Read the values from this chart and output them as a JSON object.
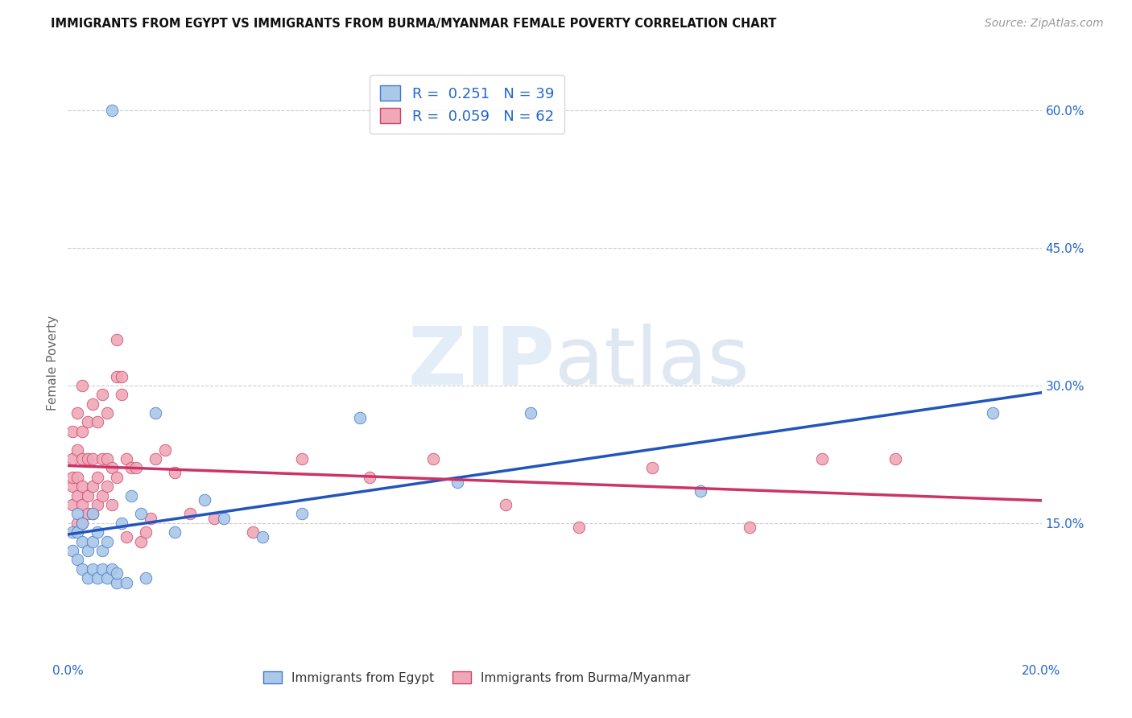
{
  "title": "IMMIGRANTS FROM EGYPT VS IMMIGRANTS FROM BURMA/MYANMAR FEMALE POVERTY CORRELATION CHART",
  "source": "Source: ZipAtlas.com",
  "ylabel": "Female Poverty",
  "xlim": [
    0.0,
    0.2
  ],
  "ylim": [
    0.0,
    0.65
  ],
  "xtick_pos": [
    0.0,
    0.05,
    0.1,
    0.15,
    0.2
  ],
  "xticklabels": [
    "0.0%",
    "",
    "",
    "",
    "20.0%"
  ],
  "ytick_pos": [
    0.15,
    0.3,
    0.45,
    0.6
  ],
  "ytick_labels": [
    "15.0%",
    "30.0%",
    "45.0%",
    "60.0%"
  ],
  "grid_color": "#cccccc",
  "background_color": "#ffffff",
  "egypt_color": "#aac8e8",
  "egypt_edge_color": "#4477cc",
  "egypt_line_color": "#2255bb",
  "egypt_R": 0.251,
  "egypt_N": 39,
  "burma_color": "#f0a8b8",
  "burma_edge_color": "#cc4466",
  "burma_line_color": "#cc3366",
  "burma_R": 0.059,
  "burma_N": 62,
  "egypt_x": [
    0.001,
    0.001,
    0.002,
    0.002,
    0.002,
    0.003,
    0.003,
    0.003,
    0.004,
    0.004,
    0.005,
    0.005,
    0.005,
    0.006,
    0.006,
    0.007,
    0.007,
    0.008,
    0.008,
    0.009,
    0.009,
    0.01,
    0.01,
    0.011,
    0.012,
    0.013,
    0.015,
    0.016,
    0.018,
    0.022,
    0.028,
    0.032,
    0.04,
    0.048,
    0.06,
    0.08,
    0.095,
    0.13,
    0.19
  ],
  "egypt_y": [
    0.12,
    0.14,
    0.11,
    0.14,
    0.16,
    0.1,
    0.13,
    0.15,
    0.09,
    0.12,
    0.1,
    0.13,
    0.16,
    0.09,
    0.14,
    0.1,
    0.12,
    0.09,
    0.13,
    0.1,
    0.6,
    0.085,
    0.095,
    0.15,
    0.085,
    0.18,
    0.16,
    0.09,
    0.27,
    0.14,
    0.175,
    0.155,
    0.135,
    0.16,
    0.265,
    0.195,
    0.27,
    0.185,
    0.27
  ],
  "burma_x": [
    0.001,
    0.001,
    0.001,
    0.001,
    0.001,
    0.002,
    0.002,
    0.002,
    0.002,
    0.002,
    0.003,
    0.003,
    0.003,
    0.003,
    0.003,
    0.003,
    0.004,
    0.004,
    0.004,
    0.004,
    0.005,
    0.005,
    0.005,
    0.005,
    0.006,
    0.006,
    0.006,
    0.007,
    0.007,
    0.007,
    0.008,
    0.008,
    0.008,
    0.009,
    0.009,
    0.01,
    0.01,
    0.011,
    0.011,
    0.012,
    0.013,
    0.014,
    0.015,
    0.016,
    0.017,
    0.018,
    0.02,
    0.022,
    0.025,
    0.03,
    0.038,
    0.048,
    0.062,
    0.075,
    0.09,
    0.105,
    0.12,
    0.14,
    0.155,
    0.17,
    0.01,
    0.012
  ],
  "burma_y": [
    0.17,
    0.19,
    0.2,
    0.22,
    0.25,
    0.15,
    0.18,
    0.2,
    0.23,
    0.27,
    0.15,
    0.17,
    0.19,
    0.22,
    0.25,
    0.3,
    0.16,
    0.18,
    0.22,
    0.26,
    0.16,
    0.19,
    0.22,
    0.28,
    0.17,
    0.2,
    0.26,
    0.18,
    0.22,
    0.29,
    0.19,
    0.22,
    0.27,
    0.17,
    0.21,
    0.2,
    0.31,
    0.29,
    0.31,
    0.22,
    0.21,
    0.21,
    0.13,
    0.14,
    0.155,
    0.22,
    0.23,
    0.205,
    0.16,
    0.155,
    0.14,
    0.22,
    0.2,
    0.22,
    0.17,
    0.145,
    0.21,
    0.145,
    0.22,
    0.22,
    0.35,
    0.135
  ],
  "legend_egypt_label": "R =  0.251   N = 39",
  "legend_burma_label": "R =  0.059   N = 62",
  "bottom_legend_egypt": "Immigrants from Egypt",
  "bottom_legend_burma": "Immigrants from Burma/Myanmar"
}
